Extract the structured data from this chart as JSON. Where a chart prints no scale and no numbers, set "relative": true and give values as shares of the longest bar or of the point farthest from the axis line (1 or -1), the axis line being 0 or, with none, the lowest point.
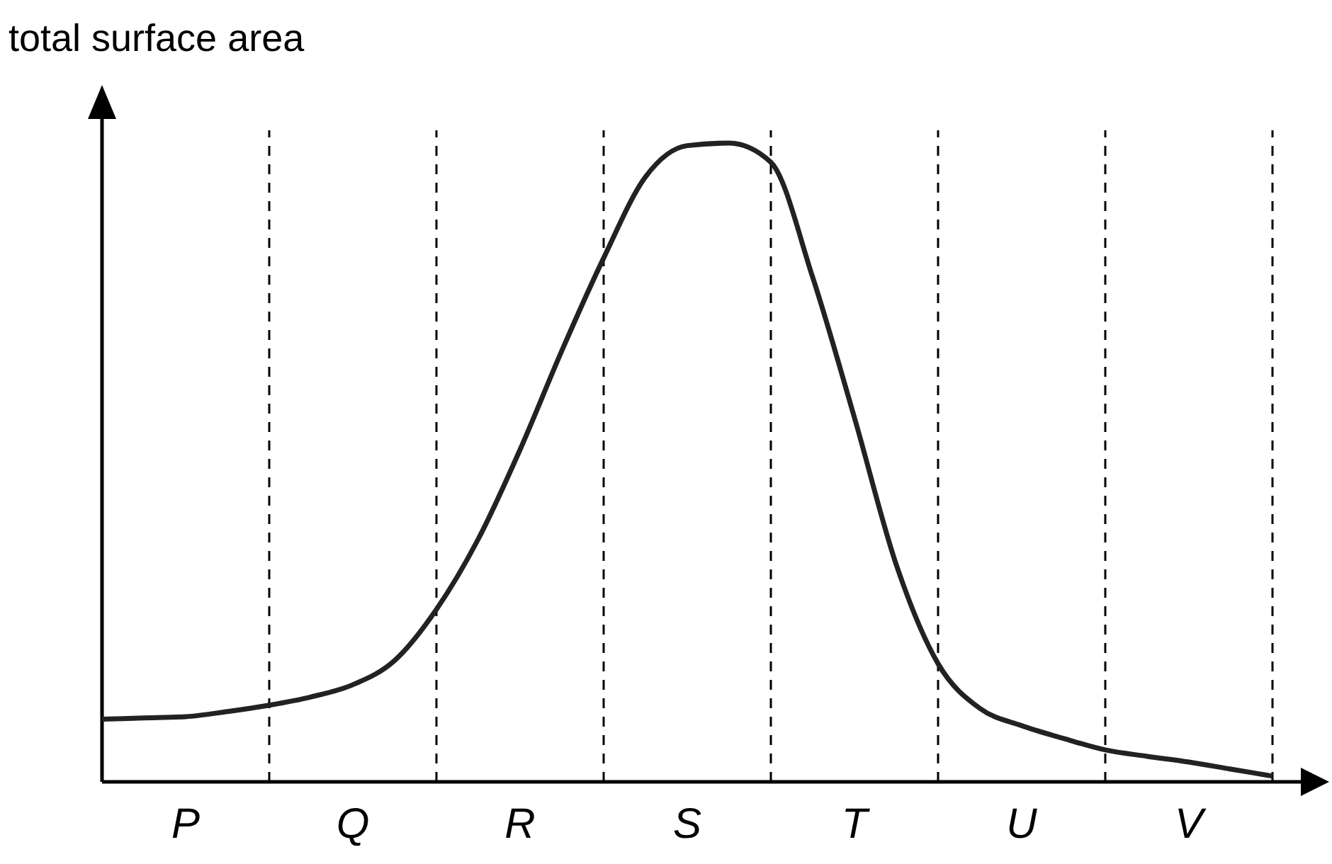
{
  "chart_data": {
    "type": "line",
    "relative": true,
    "ylabel": "total surface area",
    "categories": [
      null,
      null,
      "P",
      null,
      null,
      null,
      "Q",
      null,
      null,
      null,
      "R",
      null,
      null,
      null,
      "S",
      null,
      null,
      null,
      "T",
      null,
      null,
      null,
      "U",
      null,
      null,
      null,
      "V",
      null,
      null
    ],
    "grid": "x",
    "series": [
      {
        "color": "#222222",
        "values": [
          0.098,
          0.1,
          0.102,
          0.11,
          0.12,
          0.133,
          0.152,
          0.19,
          0.27,
          0.38,
          0.52,
          0.675,
          0.82,
          0.947,
          0.996,
          1,
          0.97,
          0.79,
          0.57,
          0.34,
          0.185,
          0.115,
          0.088,
          0.068,
          0.05,
          0.04,
          0.031,
          0.02,
          0.009
        ]
      }
    ],
    "marker": "none",
    "line_style": "solid"
  }
}
